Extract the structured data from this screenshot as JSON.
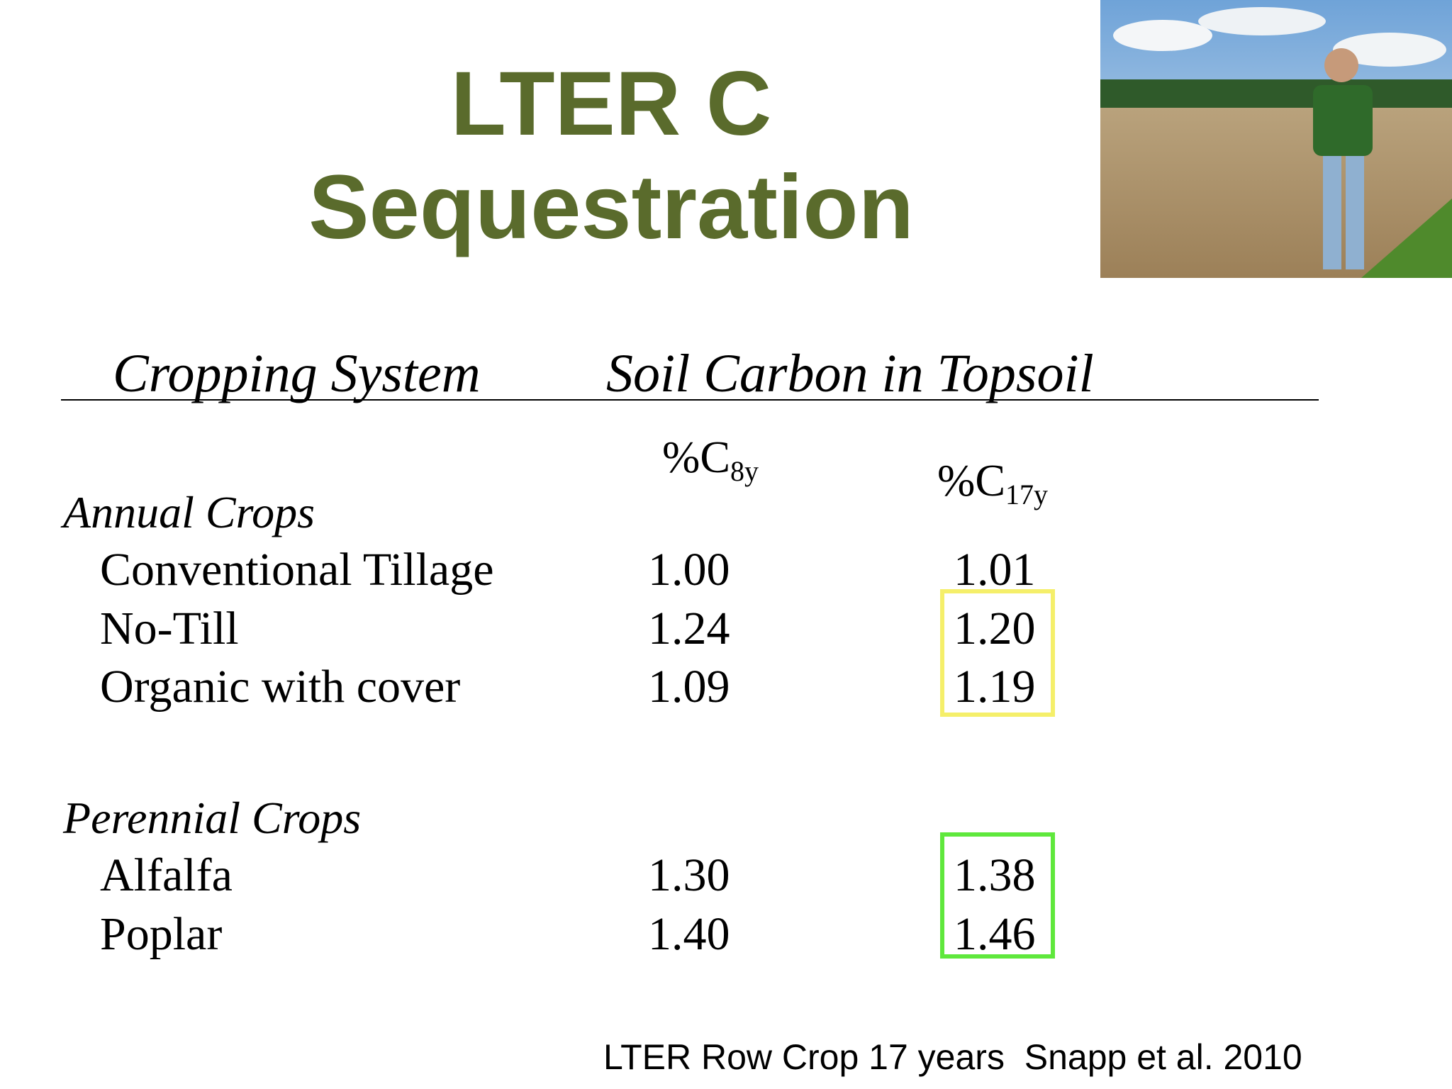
{
  "title": [
    "LTER C",
    "Sequestration"
  ],
  "table": {
    "headers": [
      "Cropping System",
      "Soil Carbon in Topsoil"
    ],
    "columns": [
      {
        "label": "%C",
        "subscript": "8y"
      },
      {
        "label": "%C",
        "subscript": "17y"
      }
    ],
    "groups": [
      {
        "name": "Annual Crops",
        "rows": [
          [
            "Conventional Tillage",
            "1.00",
            "1.01"
          ],
          [
            "No-Till",
            "1.24",
            "1.20"
          ],
          [
            "Organic with cover",
            "1.09",
            "1.19"
          ]
        ]
      },
      {
        "name": "Perennial Crops",
        "rows": [
          [
            "Alfalfa",
            "1.30",
            "1.38"
          ],
          [
            "Poplar",
            "1.40",
            "1.46"
          ]
        ]
      }
    ]
  },
  "citation": "LTER Row Crop 17 years  Snapp et al. 2010"
}
